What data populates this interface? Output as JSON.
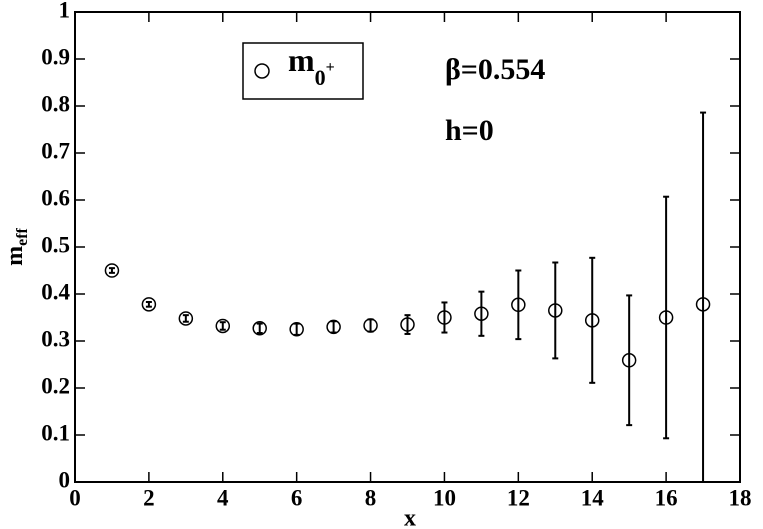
{
  "chart_data": {
    "type": "scatter",
    "x_label": "x",
    "y_label": {
      "base": "m",
      "sub": "eff"
    },
    "annotations": [
      "β=0.554",
      "h=0"
    ],
    "xlim": [
      0,
      18
    ],
    "xticks": [
      0,
      2,
      4,
      6,
      8,
      10,
      12,
      14,
      16,
      18
    ],
    "ylim": [
      0,
      1
    ],
    "yticks": [
      0,
      0.1,
      0.2,
      0.3,
      0.4,
      0.5,
      0.6,
      0.7,
      0.8,
      0.9,
      1
    ],
    "series": [
      {
        "name": "m",
        "name_sub": "0",
        "name_sup": "+",
        "color": "#000000",
        "x": [
          1,
          2,
          3,
          4,
          5,
          6,
          7,
          8,
          9,
          10,
          11,
          12,
          13,
          14,
          15,
          16,
          17
        ],
        "values": [
          0.45,
          0.378,
          0.348,
          0.332,
          0.327,
          0.325,
          0.33,
          0.333,
          0.335,
          0.35,
          0.358,
          0.377,
          0.365,
          0.344,
          0.259,
          0.35,
          0.378
        ],
        "errors": [
          0.005,
          0.005,
          0.007,
          0.008,
          0.01,
          0.012,
          0.012,
          0.013,
          0.02,
          0.032,
          0.047,
          0.073,
          0.102,
          0.133,
          0.138,
          0.257,
          0.408
        ]
      }
    ]
  }
}
